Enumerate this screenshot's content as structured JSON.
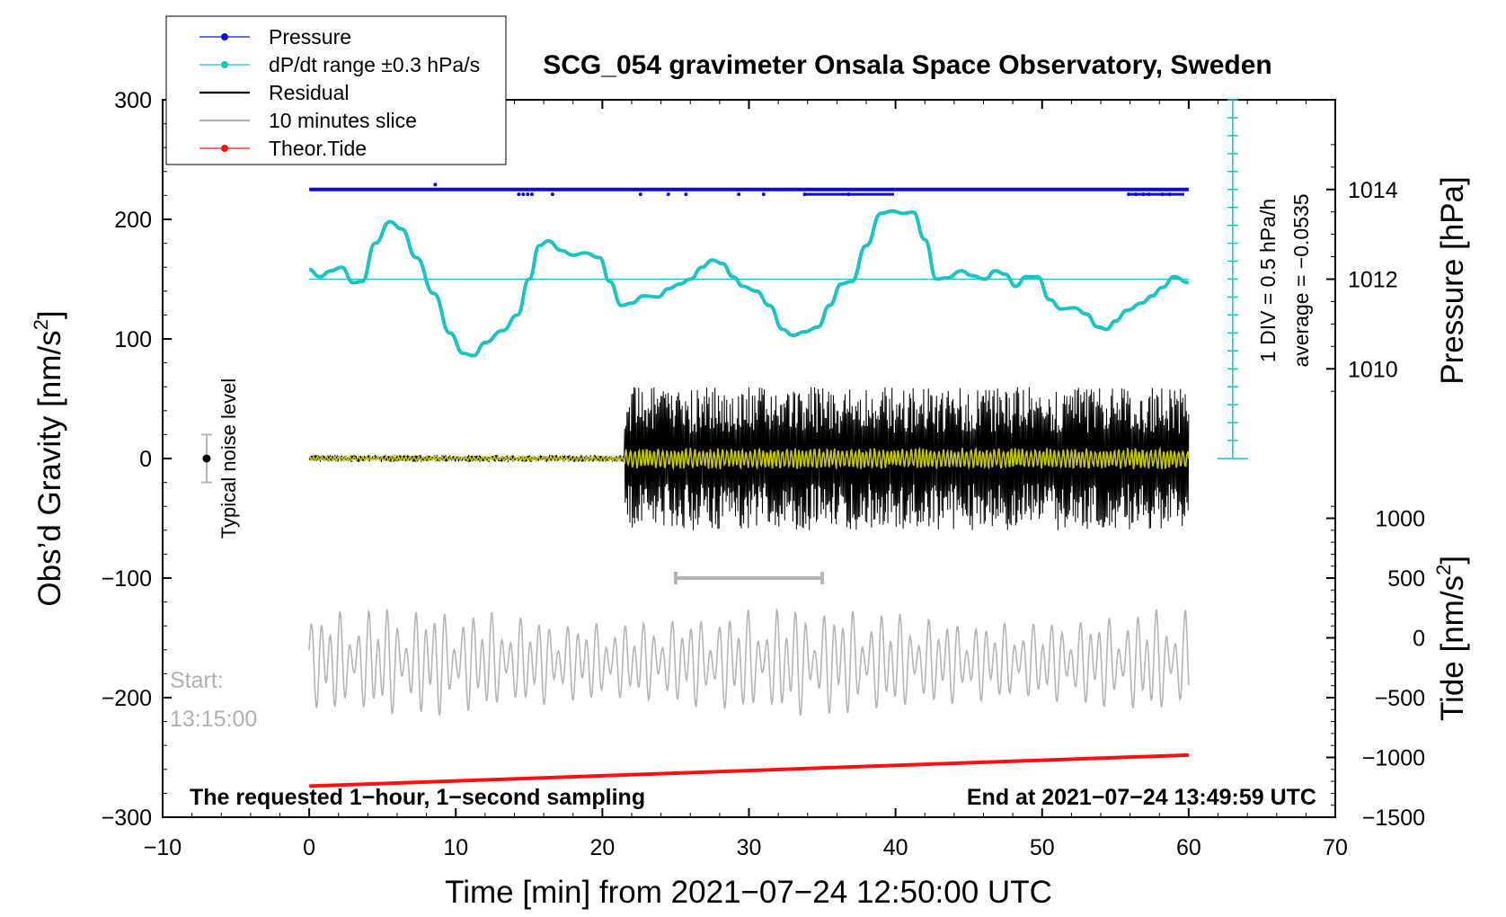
{
  "chart_data": {
    "type": "line",
    "title": "SCG_054 gravimeter Onsala Space Observatory, Sweden",
    "xlabel": "Time [min] from 2021−07−24 12:50:00 UTC",
    "ylabel_left": "Obs’d Gravity [nm/s",
    "ylabel_left_sup": "2",
    "ylabel_left_close": "]",
    "ylabel_pressure": "Pressure [hPa]",
    "ylabel_tide": "Tide [nm/s",
    "ylabel_tide_sup": "2",
    "ylabel_tide_close": "]",
    "xlim": [
      -10,
      70
    ],
    "ylim": [
      -300,
      300
    ],
    "x_ticks": [
      {
        "value": -10,
        "label": "−10"
      },
      {
        "value": 0,
        "label": "0"
      },
      {
        "value": 10,
        "label": "10"
      },
      {
        "value": 20,
        "label": "20"
      },
      {
        "value": 30,
        "label": "30"
      },
      {
        "value": 40,
        "label": "40"
      },
      {
        "value": 50,
        "label": "50"
      },
      {
        "value": 60,
        "label": "60"
      },
      {
        "value": 70,
        "label": "70"
      }
    ],
    "y_ticks": [
      {
        "value": 300,
        "label": "300"
      },
      {
        "value": 200,
        "label": "200"
      },
      {
        "value": 100,
        "label": "100"
      },
      {
        "value": 0,
        "label": "0"
      },
      {
        "value": -100,
        "label": "−100"
      },
      {
        "value": -200,
        "label": "−200"
      },
      {
        "value": -300,
        "label": "−300"
      }
    ],
    "pressure_axis": {
      "ticks": [
        {
          "value": 1014,
          "label": "1014"
        },
        {
          "value": 1012,
          "label": "1012"
        },
        {
          "value": 1010,
          "label": "1010"
        }
      ],
      "gravity_at_1012": 150,
      "gravity_per_hPa": 37.5
    },
    "tide_axis": {
      "ticks": [
        {
          "value": 1000,
          "label": "1000"
        },
        {
          "value": 500,
          "label": "500"
        },
        {
          "value": 0,
          "label": "0"
        },
        {
          "value": -500,
          "label": "−500"
        },
        {
          "value": -1000,
          "label": "−1000"
        },
        {
          "value": -1500,
          "label": "−1500"
        }
      ],
      "gravity_at_0": -150,
      "gravity_per_unit": 0.1
    },
    "legend": [
      {
        "name": "Pressure",
        "color": "#0a0adc",
        "marker": true
      },
      {
        "name": "dP/dt range ±0.3 hPa/s",
        "color": "#19c4c4",
        "marker": true
      },
      {
        "name": "Residual",
        "color": "#000000",
        "marker": false
      },
      {
        "name": "10 minutes slice",
        "color": "#b4b4b4",
        "marker": false
      },
      {
        "name": "Theor.Tide",
        "color": "#ff1010",
        "marker": true
      }
    ],
    "legend_position": "top-left",
    "series": [
      {
        "name": "Pressure",
        "color": "#0a0adc",
        "level": 225,
        "outlier_level": 221,
        "spike_level": 229,
        "outliers": [
          14.3,
          14.6,
          14.9,
          15.2,
          16.6,
          22.6,
          24.5,
          25.7,
          29.3,
          31.0,
          33.8,
          36.8,
          55.9,
          56.4,
          56.9,
          57.3,
          58.2,
          58.7
        ],
        "outlier_runs": [
          [
            33.7,
            39.9
          ],
          [
            56.0,
            59.7
          ]
        ],
        "spikes": [
          8.6
        ]
      },
      {
        "name": "dP/dt",
        "color": "#19c4c4",
        "x": [
          0,
          0.7,
          1.5,
          2.2,
          3,
          3.6,
          4.5,
          5.5,
          6.3,
          7.3,
          8.5,
          9.6,
          10.5,
          11.2,
          12.0,
          13.2,
          14.2,
          15.0,
          15.7,
          16.3,
          17.2,
          18.0,
          18.8,
          19.8,
          20.5,
          21.3,
          22.0,
          22.8,
          23.8,
          24.5,
          25.3,
          26.0,
          26.8,
          27.5,
          28.2,
          28.9,
          29.6,
          30.5,
          31.4,
          32.3,
          33.0,
          33.8,
          34.7,
          35.5,
          36.3,
          37.0,
          38.0,
          39.0,
          39.8,
          40.5,
          41.2,
          42.0,
          42.8,
          43.5,
          44.5,
          45.2,
          46.1,
          46.8,
          47.5,
          48.2,
          48.9,
          49.7,
          50.5,
          51.3,
          52.2,
          53.0,
          53.8,
          54.4,
          55.0,
          55.8,
          56.8,
          57.5,
          58.2,
          59.0,
          60.0
        ],
        "values": [
          158,
          152,
          157,
          160,
          147,
          148,
          180,
          198,
          192,
          168,
          138,
          105,
          88,
          86,
          97,
          107,
          120,
          150,
          178,
          182,
          174,
          170,
          172,
          168,
          148,
          128,
          130,
          136,
          135,
          142,
          146,
          150,
          160,
          166,
          163,
          152,
          144,
          140,
          128,
          108,
          103,
          106,
          110,
          128,
          146,
          148,
          178,
          205,
          207,
          205,
          206,
          183,
          150,
          151,
          157,
          153,
          150,
          157,
          154,
          144,
          152,
          152,
          133,
          125,
          126,
          121,
          110,
          108,
          115,
          124,
          130,
          136,
          143,
          152,
          147
        ]
      },
      {
        "name": "Residual",
        "color": "#000000",
        "quiet_amplitude": 3,
        "noisy_amplitude": 60,
        "noisy_from": 21.5
      },
      {
        "name": "Residual (filtered)",
        "color": "#c8c80a",
        "quiet_amplitude": 2,
        "noisy_amplitude": 9
      },
      {
        "name": "10 minutes slice",
        "color": "#b4b4b4",
        "center": -170,
        "amplitude": 48
      },
      {
        "name": "Theor.Tide",
        "color": "#ff1010",
        "x": [
          0,
          60
        ],
        "values": [
          -274,
          -248
        ]
      }
    ],
    "annotations": {
      "noise_label": "Typical noise level",
      "noise_bar": {
        "x": -7,
        "y": 0,
        "range": 20
      },
      "slice_bracket": {
        "from": 25,
        "to": 35,
        "y": -100
      },
      "dpdt_scale_1": "1 DIV = 0.5 hPa/h",
      "dpdt_scale_2": "average = −0.0535",
      "dpdt_scale_axis": {
        "x": 63,
        "from": 0,
        "to": 300,
        "step": 15
      },
      "dpdt_baseline": 150,
      "start_label": "Start:",
      "start_time": "13:15:00",
      "bottom_left": "The requested 1−hour, 1−second sampling",
      "bottom_right": "End at 2021−07−24 13:49:59 UTC"
    }
  }
}
